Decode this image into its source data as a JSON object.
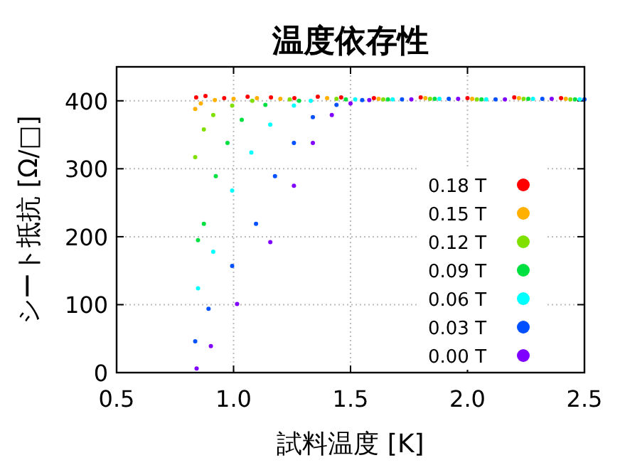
{
  "chart_data": {
    "type": "scatter",
    "title": "温度依存性",
    "xlabel": "試料温度 [K]",
    "ylabel": "シート抵抗 [Ω/□]",
    "xlim": [
      0.5,
      2.5
    ],
    "xticks": [
      {
        "value": 0.5,
        "label": "0.5"
      },
      {
        "value": 1.0,
        "label": "1.0"
      },
      {
        "value": 1.5,
        "label": "1.5"
      },
      {
        "value": 2.0,
        "label": "2.0"
      },
      {
        "value": 2.5,
        "label": "2.5"
      }
    ],
    "ylim": [
      0,
      450
    ],
    "yticks": [
      0,
      100,
      200,
      300,
      400
    ],
    "grid": true,
    "legend": "bottom right",
    "marker": "circle",
    "series": [
      {
        "name": "0.18 T",
        "color": "#ff0000",
        "x": [
          0.84,
          0.88,
          0.96,
          1.06,
          1.16,
          1.26,
          1.36,
          1.46,
          1.6,
          1.8,
          2.0,
          2.2,
          2.4
        ],
        "values": [
          405,
          407,
          404,
          406,
          405,
          404,
          406,
          405,
          404,
          405,
          404,
          405,
          404
        ]
      },
      {
        "name": "0.15 T",
        "color": "#ffb000",
        "x": [
          0.836,
          0.86,
          0.92,
          1.0,
          1.1,
          1.2,
          1.4,
          1.62,
          1.82,
          2.02,
          2.22,
          2.42
        ],
        "values": [
          388,
          396,
          401,
          403,
          404,
          403,
          404,
          403,
          404,
          403,
          404,
          403
        ]
      },
      {
        "name": "0.12 T",
        "color": "#80e000",
        "x": [
          0.836,
          0.873,
          0.913,
          0.994,
          1.08,
          1.24,
          1.44,
          1.64,
          1.84,
          2.04,
          2.24,
          2.44
        ],
        "values": [
          317,
          358,
          379,
          393,
          400,
          402,
          403,
          402,
          403,
          402,
          403,
          402
        ]
      },
      {
        "name": "0.09 T",
        "color": "#00e040",
        "x": [
          0.848,
          0.873,
          0.924,
          0.974,
          1.035,
          1.136,
          1.28,
          1.48,
          1.66,
          1.86,
          2.06,
          2.26,
          2.46
        ],
        "values": [
          195,
          219,
          289,
          338,
          372,
          394,
          400,
          402,
          402,
          403,
          402,
          403,
          402
        ]
      },
      {
        "name": "0.06 T",
        "color": "#00ffff",
        "x": [
          0.848,
          0.913,
          0.994,
          1.076,
          1.157,
          1.258,
          1.33,
          1.52,
          1.68,
          1.88,
          2.08,
          2.28,
          2.48
        ],
        "values": [
          124,
          178,
          268,
          324,
          365,
          393,
          400,
          402,
          402,
          403,
          402,
          403,
          402
        ]
      },
      {
        "name": "0.03 T",
        "color": "#0050ff",
        "x": [
          0.836,
          0.893,
          0.994,
          1.096,
          1.177,
          1.258,
          1.339,
          1.44,
          1.55,
          1.72,
          1.92,
          2.12,
          2.32,
          2.5
        ],
        "values": [
          46,
          94,
          157,
          219,
          289,
          338,
          376,
          394,
          401,
          402,
          403,
          402,
          403,
          402
        ]
      },
      {
        "name": "0.00 T",
        "color": "#8000ff",
        "x": [
          0.842,
          0.903,
          1.015,
          1.157,
          1.258,
          1.339,
          1.42,
          1.5,
          1.58,
          1.76,
          1.96,
          2.16,
          2.36
        ],
        "values": [
          6,
          39,
          101,
          192,
          275,
          338,
          379,
          396,
          401,
          402,
          403,
          402,
          403
        ]
      }
    ]
  }
}
